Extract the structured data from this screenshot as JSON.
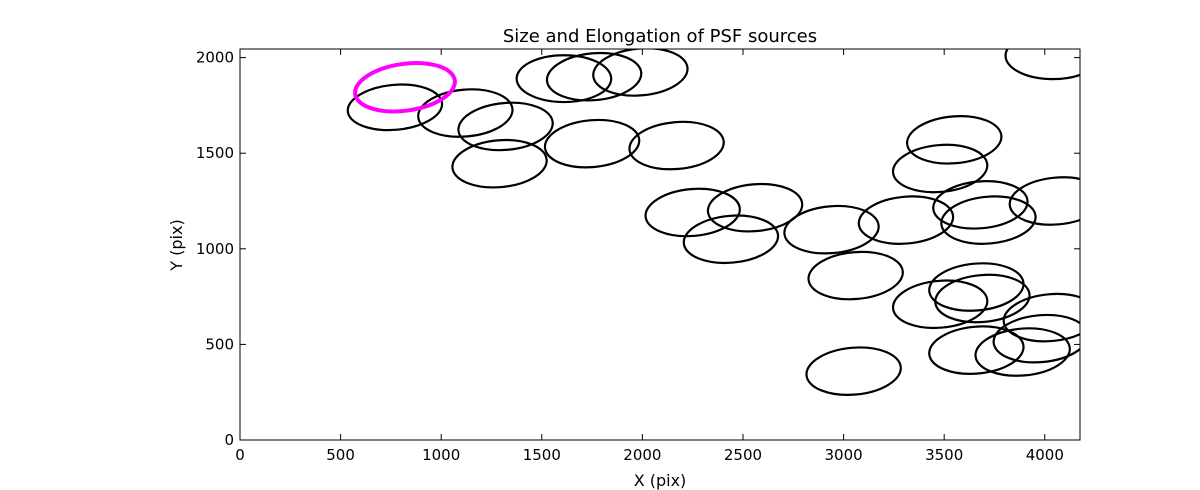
{
  "chart_data": {
    "type": "scatter",
    "marker": "ellipse",
    "title": "Size and Elongation of PSF sources",
    "xlabel": "X (pix)",
    "ylabel": "Y (pix)",
    "xlim": [
      0,
      4175
    ],
    "ylim": [
      0,
      2045
    ],
    "xticks": [
      0,
      500,
      1000,
      1500,
      2000,
      2500,
      3000,
      3500,
      4000
    ],
    "yticks": [
      0,
      500,
      1000,
      1500,
      2000
    ],
    "highlight_color": "#ff00ff",
    "sources": [
      {
        "x": 770,
        "y": 1740,
        "w": 470,
        "h": 235,
        "angle": 5
      },
      {
        "x": 820,
        "y": 1845,
        "w": 500,
        "h": 245,
        "angle": 8,
        "highlight": true
      },
      {
        "x": 1120,
        "y": 1710,
        "w": 470,
        "h": 245,
        "angle": 5
      },
      {
        "x": 1320,
        "y": 1640,
        "w": 470,
        "h": 245,
        "angle": 5
      },
      {
        "x": 1290,
        "y": 1445,
        "w": 470,
        "h": 245,
        "angle": 5
      },
      {
        "x": 1610,
        "y": 1890,
        "w": 470,
        "h": 245,
        "angle": 0
      },
      {
        "x": 1760,
        "y": 1900,
        "w": 470,
        "h": 245,
        "angle": 5
      },
      {
        "x": 1990,
        "y": 1925,
        "w": 470,
        "h": 245,
        "angle": 5
      },
      {
        "x": 1750,
        "y": 1550,
        "w": 470,
        "h": 245,
        "angle": 5
      },
      {
        "x": 2170,
        "y": 1540,
        "w": 470,
        "h": 245,
        "angle": 5
      },
      {
        "x": 2250,
        "y": 1190,
        "w": 470,
        "h": 245,
        "angle": 5
      },
      {
        "x": 2440,
        "y": 1050,
        "w": 470,
        "h": 245,
        "angle": 5
      },
      {
        "x": 2560,
        "y": 1215,
        "w": 470,
        "h": 245,
        "angle": 5
      },
      {
        "x": 2940,
        "y": 1100,
        "w": 470,
        "h": 245,
        "angle": 5
      },
      {
        "x": 3060,
        "y": 860,
        "w": 470,
        "h": 245,
        "angle": 5
      },
      {
        "x": 3050,
        "y": 360,
        "w": 470,
        "h": 245,
        "angle": 5
      },
      {
        "x": 3310,
        "y": 1150,
        "w": 470,
        "h": 245,
        "angle": 5
      },
      {
        "x": 3480,
        "y": 1420,
        "w": 470,
        "h": 245,
        "angle": 5
      },
      {
        "x": 3550,
        "y": 1570,
        "w": 470,
        "h": 245,
        "angle": 5
      },
      {
        "x": 3480,
        "y": 710,
        "w": 470,
        "h": 245,
        "angle": 5
      },
      {
        "x": 3680,
        "y": 1230,
        "w": 470,
        "h": 245,
        "angle": 5
      },
      {
        "x": 3720,
        "y": 1150,
        "w": 470,
        "h": 245,
        "angle": 5
      },
      {
        "x": 3660,
        "y": 800,
        "w": 470,
        "h": 245,
        "angle": 5
      },
      {
        "x": 3690,
        "y": 740,
        "w": 470,
        "h": 245,
        "angle": 5
      },
      {
        "x": 3660,
        "y": 470,
        "w": 470,
        "h": 245,
        "angle": 5
      },
      {
        "x": 3890,
        "y": 460,
        "w": 470,
        "h": 245,
        "angle": 5
      },
      {
        "x": 3980,
        "y": 530,
        "w": 470,
        "h": 245,
        "angle": 5
      },
      {
        "x": 4030,
        "y": 640,
        "w": 470,
        "h": 245,
        "angle": 5
      },
      {
        "x": 4060,
        "y": 1250,
        "w": 470,
        "h": 245,
        "angle": 5
      },
      {
        "x": 4040,
        "y": 2010,
        "w": 470,
        "h": 245,
        "angle": 0
      }
    ]
  }
}
